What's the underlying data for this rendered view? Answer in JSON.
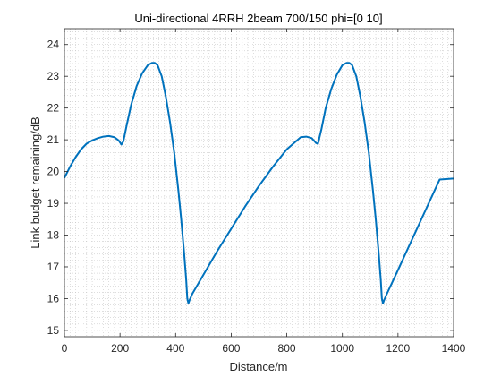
{
  "chart_data": {
    "type": "line",
    "title": "Uni-directional 4RRH 2beam 700/150 phi=[0   10]",
    "xlabel": "Distance/m",
    "ylabel": "Link budget remaining/dB",
    "xlim": [
      0,
      1400
    ],
    "ylim": [
      14.8,
      24.5
    ],
    "xticks": [
      0,
      200,
      400,
      600,
      800,
      1000,
      1200,
      1400
    ],
    "yticks": [
      15,
      16,
      17,
      18,
      19,
      20,
      21,
      22,
      23,
      24
    ],
    "xtick_labels": [
      "0",
      "200",
      "400",
      "600",
      "800",
      "1000",
      "1200",
      "1400"
    ],
    "ytick_labels": [
      "15",
      "16",
      "17",
      "18",
      "19",
      "20",
      "21",
      "22",
      "23",
      "24"
    ],
    "grid": "dotted-minor",
    "line_color": "#0072bd",
    "series": [
      {
        "x": [
          0,
          20,
          40,
          60,
          80,
          100,
          120,
          140,
          160,
          180,
          195,
          205,
          212,
          225,
          240,
          260,
          280,
          300,
          315,
          325,
          335,
          350,
          365,
          380,
          395,
          410,
          420,
          430,
          438,
          442,
          446,
          450,
          460,
          500,
          550,
          600,
          650,
          700,
          750,
          800,
          850,
          870,
          890,
          905,
          912,
          925,
          940,
          960,
          980,
          1000,
          1015,
          1025,
          1035,
          1050,
          1065,
          1080,
          1095,
          1110,
          1120,
          1130,
          1138,
          1142,
          1146,
          1150,
          1160,
          1200,
          1250,
          1300,
          1350,
          1400
        ],
        "y": [
          19.8,
          20.15,
          20.45,
          20.7,
          20.88,
          20.98,
          21.05,
          21.1,
          21.12,
          21.08,
          20.98,
          20.85,
          20.95,
          21.5,
          22.1,
          22.7,
          23.1,
          23.35,
          23.42,
          23.42,
          23.35,
          23.0,
          22.35,
          21.55,
          20.6,
          19.4,
          18.5,
          17.5,
          16.6,
          16.0,
          15.85,
          15.95,
          16.15,
          16.75,
          17.5,
          18.2,
          18.9,
          19.55,
          20.15,
          20.7,
          21.08,
          21.1,
          21.05,
          20.9,
          20.87,
          21.35,
          22.0,
          22.6,
          23.05,
          23.35,
          23.42,
          23.42,
          23.35,
          23.0,
          22.35,
          21.55,
          20.6,
          19.4,
          18.5,
          17.5,
          16.6,
          16.0,
          15.85,
          15.95,
          16.15,
          16.9,
          17.85,
          18.8,
          19.75,
          19.78
        ]
      }
    ]
  }
}
